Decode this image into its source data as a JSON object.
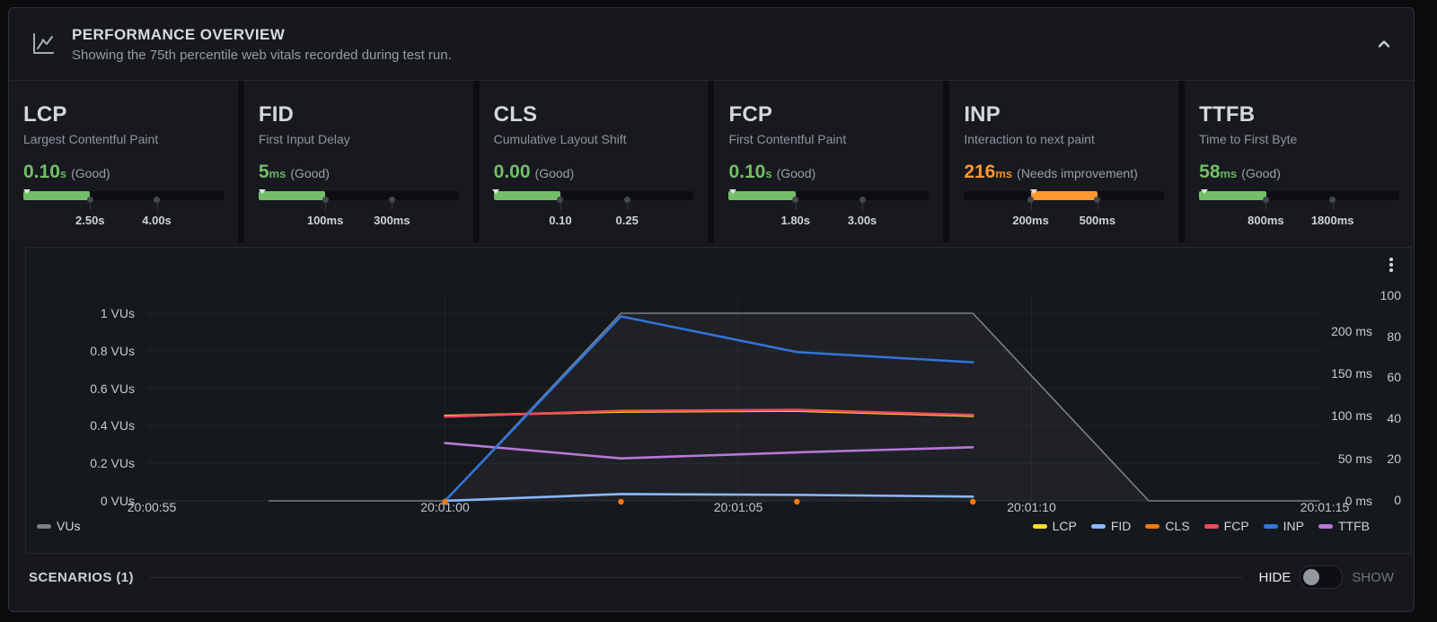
{
  "header": {
    "title": "PERFORMANCE OVERVIEW",
    "subtitle": "Showing the 75th percentile web vitals recorded during test run."
  },
  "metrics": [
    {
      "name": "LCP",
      "description": "Largest Contentful Paint",
      "value": "0.10",
      "unit": "s",
      "status": "(Good)",
      "color": "#73BF69",
      "fill_start_pct": 0,
      "fill_width_pct": 33.4,
      "caret_pct": 2,
      "tick_labels": [
        "2.50s",
        "4.00s"
      ]
    },
    {
      "name": "FID",
      "description": "First Input Delay",
      "value": "5",
      "unit": "ms",
      "status": "(Good)",
      "color": "#73BF69",
      "fill_start_pct": 0,
      "fill_width_pct": 33.4,
      "caret_pct": 2,
      "tick_labels": [
        "100ms",
        "300ms"
      ]
    },
    {
      "name": "CLS",
      "description": "Cumulative Layout Shift",
      "value": "0.00",
      "unit": "",
      "status": "(Good)",
      "color": "#73BF69",
      "fill_start_pct": 0,
      "fill_width_pct": 33.4,
      "caret_pct": 1,
      "tick_labels": [
        "0.10",
        "0.25"
      ]
    },
    {
      "name": "FCP",
      "description": "First Contentful Paint",
      "value": "0.10",
      "unit": "s",
      "status": "(Good)",
      "color": "#73BF69",
      "fill_start_pct": 0,
      "fill_width_pct": 33.4,
      "caret_pct": 2,
      "tick_labels": [
        "1.80s",
        "3.00s"
      ]
    },
    {
      "name": "INP",
      "description": "Interaction to next paint",
      "value": "216",
      "unit": "ms",
      "status": "(Needs improvement)",
      "color": "#FF9830",
      "fill_start_pct": 33.3,
      "fill_width_pct": 33.4,
      "caret_pct": 35,
      "tick_labels": [
        "200ms",
        "500ms"
      ]
    },
    {
      "name": "TTFB",
      "description": "Time to First Byte",
      "value": "58",
      "unit": "ms",
      "status": "(Good)",
      "color": "#73BF69",
      "fill_start_pct": 0,
      "fill_width_pct": 33.4,
      "caret_pct": 2.5,
      "tick_labels": [
        "800ms",
        "1800ms"
      ]
    }
  ],
  "chart_data": {
    "type": "line",
    "x_axis": {
      "tick_times": [
        "20:00:55",
        "20:01:00",
        "20:01:05",
        "20:01:10",
        "20:01:15"
      ],
      "tick_t": [
        0,
        5,
        10,
        15,
        20
      ]
    },
    "left_axis": {
      "unit": "VUs",
      "range": [
        0,
        1
      ],
      "ticks": [
        {
          "label": "1 VUs",
          "v": 1
        },
        {
          "label": "0.8 VUs",
          "v": 0.8
        },
        {
          "label": "0.6 VUs",
          "v": 0.6
        },
        {
          "label": "0.4 VUs",
          "v": 0.4
        },
        {
          "label": "0.2 VUs",
          "v": 0.2
        },
        {
          "label": "0 VUs",
          "v": 0
        }
      ]
    },
    "right_axis_ms": {
      "unit": "ms",
      "range": [
        0,
        200
      ],
      "ticks": [
        {
          "label": "200 ms",
          "v": 200
        },
        {
          "label": "150 ms",
          "v": 150
        },
        {
          "label": "100 ms",
          "v": 100
        },
        {
          "label": "50 ms",
          "v": 50
        },
        {
          "label": "0 ms",
          "v": 0
        }
      ]
    },
    "right_axis_pct": {
      "range": [
        0,
        100
      ],
      "ticks": [
        {
          "label": "100",
          "v": 100
        },
        {
          "label": "80",
          "v": 80
        },
        {
          "label": "60",
          "v": 60
        },
        {
          "label": "40",
          "v": 40
        },
        {
          "label": "20",
          "v": 20
        },
        {
          "label": "0",
          "v": 0
        }
      ]
    },
    "series": [
      {
        "name": "VUs",
        "color": "#7d8085",
        "axis": "vus",
        "style": "area-line",
        "t": [
          2,
          5,
          8,
          14,
          17,
          19.9
        ],
        "values": [
          0,
          0,
          1,
          1,
          0,
          0
        ]
      },
      {
        "name": "LCP",
        "color": "#FADE2A",
        "axis": "ms",
        "style": "line",
        "t": [
          5,
          8,
          11,
          14
        ],
        "values": [
          100,
          105,
          106,
          100
        ]
      },
      {
        "name": "FCP",
        "color": "#F2495C",
        "axis": "ms",
        "style": "line",
        "t": [
          5,
          8,
          11,
          14
        ],
        "values": [
          99,
          106,
          107,
          101
        ]
      },
      {
        "name": "TTFB",
        "color": "#B877D9",
        "axis": "ms",
        "style": "line",
        "t": [
          5,
          8,
          11,
          14
        ],
        "values": [
          68,
          50,
          57,
          63
        ]
      },
      {
        "name": "FID",
        "color": "#8AB8FF",
        "axis": "ms",
        "style": "line",
        "t": [
          5,
          8,
          11,
          14
        ],
        "values": [
          0,
          8,
          7,
          5
        ]
      },
      {
        "name": "INP",
        "color": "#3274D9",
        "axis": "ms",
        "style": "line",
        "t": [
          5,
          8,
          11,
          14
        ],
        "values": [
          0,
          217,
          175,
          163
        ]
      },
      {
        "name": "CLS",
        "color": "#FF780A",
        "axis": "ms",
        "style": "points",
        "t": [
          5,
          8,
          11,
          14
        ],
        "values": [
          0,
          0,
          0,
          0
        ]
      }
    ],
    "legend_left": [
      "VUs"
    ],
    "legend_right": [
      "LCP",
      "FID",
      "CLS",
      "FCP",
      "INP",
      "TTFB"
    ],
    "grid": true,
    "legend_position": "bottom"
  },
  "footer": {
    "scenarios": "SCENARIOS (1)",
    "hide": "HIDE",
    "show": "SHOW",
    "toggle_state": "off"
  }
}
